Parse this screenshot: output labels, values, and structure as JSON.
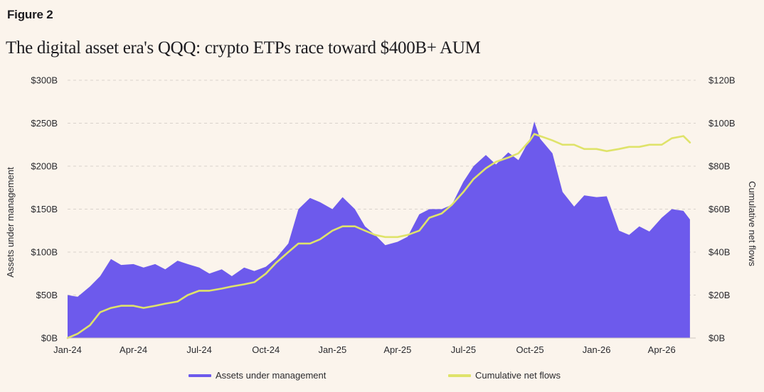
{
  "figure_label": "Figure 2",
  "title": "The digital asset era's QQQ: crypto ETPs race toward $400B+ AUM",
  "legend": {
    "aum": "Assets under management",
    "flows": "Cumulative net flows"
  },
  "colors": {
    "background": "#fbf4ec",
    "aum": "#6d5aec",
    "flows": "#dfe36a",
    "gridline": "#d9d2cb"
  },
  "chart_data": {
    "type": "area",
    "xlabel": "",
    "ylabel": "Assets under management",
    "y2label": "Cumulative net flows",
    "x_ticks": [
      "Jan-24",
      "Apr-24",
      "Jul-24",
      "Oct-24",
      "Jan-25",
      "Apr-25",
      "Jul-25",
      "Oct-25",
      "Jan-26",
      "Apr-26"
    ],
    "x_range": [
      "2024-01",
      "2026-05"
    ],
    "y_ticks": [
      "$0B",
      "$50B",
      "$100B",
      "$150B",
      "$200B",
      "$250B",
      "$300B"
    ],
    "y2_ticks": [
      "$0B",
      "$20B",
      "$40B",
      "$60B",
      "$80B",
      "$100B",
      "$120B"
    ],
    "ylim": [
      0,
      300
    ],
    "y2lim": [
      0,
      120
    ],
    "grid": true,
    "legend_position": "bottom",
    "x": [
      "2024-01-01",
      "2024-01-15",
      "2024-02-01",
      "2024-02-15",
      "2024-03-01",
      "2024-03-15",
      "2024-04-01",
      "2024-04-15",
      "2024-05-01",
      "2024-05-15",
      "2024-06-01",
      "2024-06-15",
      "2024-07-01",
      "2024-07-15",
      "2024-08-01",
      "2024-08-15",
      "2024-09-01",
      "2024-09-15",
      "2024-10-01",
      "2024-10-15",
      "2024-11-01",
      "2024-11-15",
      "2024-12-01",
      "2024-12-15",
      "2025-01-01",
      "2025-01-15",
      "2025-02-01",
      "2025-02-15",
      "2025-03-01",
      "2025-03-15",
      "2025-04-01",
      "2025-04-15",
      "2025-05-01",
      "2025-05-15",
      "2025-06-01",
      "2025-06-15",
      "2025-07-01",
      "2025-07-15",
      "2025-08-01",
      "2025-08-15",
      "2025-09-01",
      "2025-09-15",
      "2025-10-01",
      "2025-10-07",
      "2025-10-15",
      "2025-11-01",
      "2025-11-15",
      "2025-12-01",
      "2025-12-15",
      "2026-01-01",
      "2026-01-15",
      "2026-02-01",
      "2026-02-15",
      "2026-03-01",
      "2026-03-15",
      "2026-04-01",
      "2026-04-15",
      "2026-05-01",
      "2026-05-10"
    ],
    "series": [
      {
        "name": "Assets under management",
        "axis": "left",
        "values": [
          50,
          48,
          60,
          72,
          92,
          85,
          86,
          82,
          86,
          80,
          90,
          86,
          82,
          75,
          80,
          72,
          82,
          78,
          83,
          93,
          110,
          150,
          163,
          158,
          150,
          164,
          150,
          130,
          120,
          108,
          112,
          118,
          144,
          150,
          150,
          155,
          182,
          200,
          213,
          202,
          216,
          207,
          232,
          252,
          232,
          215,
          170,
          153,
          166,
          164,
          165,
          125,
          120,
          130,
          124,
          140,
          150,
          148,
          138
        ]
      },
      {
        "name": "Cumulative net flows",
        "axis": "right",
        "values": [
          0,
          2,
          6,
          12,
          14,
          15,
          15,
          14,
          15,
          16,
          17,
          20,
          22,
          22,
          23,
          24,
          25,
          26,
          30,
          35,
          40,
          44,
          44,
          46,
          50,
          52,
          52,
          50,
          48,
          47,
          47,
          48,
          50,
          56,
          58,
          62,
          68,
          74,
          79,
          82,
          84,
          86,
          92,
          95,
          94,
          92,
          90,
          90,
          88,
          88,
          87,
          88,
          89,
          89,
          90,
          90,
          93,
          94,
          91
        ]
      }
    ]
  }
}
